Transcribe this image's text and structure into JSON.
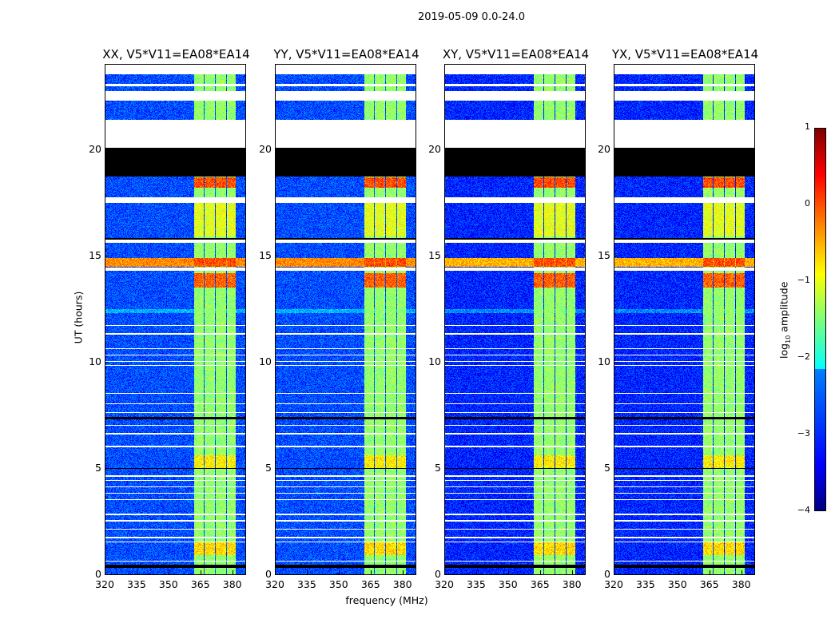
{
  "chart_data": {
    "type": "heatmap",
    "title": "2019-05-09 0.0-24.0",
    "xlabel": "frequency (MHz)",
    "ylabel": "UT (hours)",
    "xlim": [
      320,
      386.5
    ],
    "ylim": [
      0,
      24
    ],
    "xticks": [
      "320",
      "335",
      "350",
      "365",
      "380"
    ],
    "xtick_values": [
      320,
      335,
      350,
      365,
      380
    ],
    "yticks": [
      "0",
      "5",
      "10",
      "15",
      "20"
    ],
    "ytick_values": [
      0,
      5,
      10,
      15,
      20
    ],
    "colorbar": {
      "label_prefix": "log",
      "label_sub": "10",
      "label_suffix": " amplitude",
      "range": [
        -4,
        1
      ],
      "ticks": [
        "−4",
        "−3",
        "−2",
        "−1",
        "0",
        "1"
      ],
      "tick_values": [
        -4,
        -3,
        -2,
        -1,
        0,
        1
      ],
      "colormap": "jet"
    },
    "background_level": -3.0,
    "signal_bands_mhz": [
      [
        362,
        366.6
      ],
      [
        367.2,
        372
      ],
      [
        372.6,
        377.2
      ],
      [
        377.8,
        382
      ]
    ],
    "band_level": -1.4,
    "events": [
      {
        "t": [
          18.2,
          18.7
        ],
        "level": 0.0,
        "scope": "band"
      },
      {
        "t": [
          13.5,
          14.2
        ],
        "level": -0.1,
        "scope": "band"
      },
      {
        "t": [
          14.5,
          14.9
        ],
        "level": 0.0,
        "scope": "all"
      },
      {
        "t": [
          12.3,
          12.5
        ],
        "level": -2.2,
        "scope": "all"
      },
      {
        "t": [
          15.9,
          17.5
        ],
        "level": -1.0,
        "scope": "band"
      },
      {
        "t": [
          5.0,
          5.6
        ],
        "level": -0.8,
        "scope": "band"
      },
      {
        "t": [
          0.9,
          1.5
        ],
        "level": -0.7,
        "scope": "band"
      }
    ],
    "flagged_white": [
      [
        23.55,
        24
      ],
      [
        23.0,
        23.08
      ],
      [
        22.3,
        22.75
      ],
      [
        20.1,
        21.4
      ],
      [
        17.5,
        17.75
      ],
      [
        15.6,
        15.75
      ],
      [
        14.3,
        14.45
      ],
      [
        11.7,
        11.75
      ],
      [
        11.3,
        11.35
      ],
      [
        10.6,
        10.65
      ],
      [
        10.3,
        10.35
      ],
      [
        10.0,
        10.05
      ],
      [
        9.8,
        9.85
      ],
      [
        8.5,
        8.55
      ],
      [
        8.0,
        8.05
      ],
      [
        7.6,
        7.65
      ],
      [
        7.0,
        7.05
      ],
      [
        6.6,
        6.65
      ],
      [
        6.0,
        6.05
      ],
      [
        4.6,
        4.65
      ],
      [
        4.4,
        4.45
      ],
      [
        4.1,
        4.15
      ],
      [
        3.8,
        3.85
      ],
      [
        3.5,
        3.55
      ],
      [
        2.8,
        2.85
      ],
      [
        2.5,
        2.55
      ],
      [
        2.1,
        2.15
      ],
      [
        1.7,
        1.75
      ],
      [
        1.5,
        1.55
      ],
      [
        0.6,
        0.65
      ]
    ],
    "flagged_black": [
      [
        18.75,
        20.1
      ],
      [
        15.75,
        15.85
      ],
      [
        7.3,
        7.4
      ],
      [
        4.95,
        5.02
      ],
      [
        0.3,
        0.45
      ]
    ],
    "panels": [
      {
        "title": "XX, V5*V11=EA08*EA14",
        "seed": 1
      },
      {
        "title": "YY, V5*V11=EA08*EA14",
        "seed": 2
      },
      {
        "title": "XY, V5*V11=EA08*EA14",
        "seed": 3
      },
      {
        "title": "YX, V5*V11=EA08*EA14",
        "seed": 4
      }
    ]
  }
}
